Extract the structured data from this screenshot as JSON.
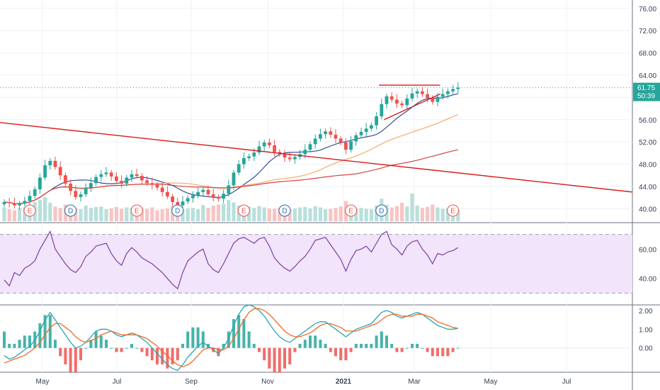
{
  "chart_data": {
    "type": "candlestick",
    "symbol_title": "",
    "x_axis_labels": [
      "May",
      "Jul",
      "Sep",
      "Nov",
      "2021",
      "Mar",
      "May",
      "Jul"
    ],
    "price_panel": {
      "y_ticks": [
        "76.00",
        "72.00",
        "68.00",
        "64.00",
        "60.00",
        "56.00",
        "52.00",
        "48.00",
        "44.00",
        "40.00"
      ],
      "ylim": [
        37.5,
        77.5
      ],
      "last_price_label": "61.75",
      "countdown_label": "50:39",
      "last_price": 61.75,
      "closes": [
        41.2,
        41.0,
        40.6,
        40.9,
        41.4,
        42.3,
        43.5,
        45.6,
        47.8,
        48.6,
        47.5,
        46.0,
        44.5,
        43.2,
        42.1,
        42.6,
        43.8,
        44.6,
        45.7,
        46.2,
        46.5,
        45.8,
        45.0,
        44.5,
        45.6,
        46.2,
        45.9,
        45.1,
        44.6,
        44.3,
        43.8,
        43.0,
        42.2,
        41.2,
        40.6,
        41.3,
        41.9,
        42.4,
        43.0,
        43.4,
        42.6,
        42.1,
        41.8,
        42.7,
        44.2,
        46.5,
        48.0,
        49.1,
        49.4,
        50.1,
        51.2,
        51.9,
        51.4,
        50.2,
        49.8,
        49.2,
        48.9,
        49.3,
        49.8,
        50.6,
        51.6,
        52.6,
        53.4,
        53.9,
        53.3,
        52.6,
        51.9,
        50.6,
        52.1,
        53.2,
        53.8,
        54.4,
        55.0,
        56.6,
        58.8,
        60.2,
        59.6,
        58.9,
        58.6,
        59.8,
        60.7,
        61.1,
        60.6,
        59.9,
        59.2,
        60.1,
        60.6,
        61.1,
        61.5,
        61.75
      ],
      "volume": [
        3.0,
        2.6,
        2.4,
        2.8,
        3.0,
        3.3,
        4.2,
        4.6,
        5.2,
        4.0,
        3.2,
        2.9,
        3.6,
        3.1,
        2.8,
        2.6,
        3.4,
        2.9,
        3.1,
        3.2,
        2.6,
        2.8,
        3.1,
        2.7,
        3.0,
        2.9,
        2.6,
        2.8,
        2.7,
        3.0,
        2.4,
        2.6,
        2.8,
        3.3,
        2.5,
        2.6,
        2.8,
        2.9,
        2.6,
        3.5,
        2.9,
        3.4,
        3.6,
        3.8,
        4.6,
        4.1,
        3.4,
        3.0,
        3.2,
        2.9,
        3.3,
        3.0,
        2.8,
        2.7,
        2.9,
        3.0,
        2.6,
        2.8,
        3.0,
        3.1,
        2.8,
        3.3,
        3.0,
        2.6,
        2.7,
        2.9,
        3.2,
        4.4,
        3.1,
        2.8,
        2.9,
        2.7,
        2.6,
        3.4,
        4.9,
        3.6,
        3.0,
        3.3,
        4.0,
        3.2,
        6.0,
        3.4,
        2.9,
        3.1,
        3.6,
        3.0,
        2.7,
        2.8,
        2.6,
        2.5
      ],
      "moving_averages": [
        {
          "color": "#1e3a8a",
          "period": 10
        },
        {
          "color": "#f5a25d",
          "period": 30
        },
        {
          "color": "#d32f2f",
          "period": 70
        }
      ],
      "trendlines": [
        {
          "color": "#d81b1b",
          "from": [
            -2,
            55.6
          ],
          "to": [
            132,
            43.0
          ]
        },
        {
          "color": "#d81b1b",
          "from": [
            73.5,
            62.2
          ],
          "to": [
            85.5,
            62.2
          ]
        },
        {
          "color": "#d81b1b",
          "from": [
            74.5,
            56.0
          ],
          "to": [
            85.5,
            60.6
          ]
        }
      ],
      "events": [
        {
          "label": "E",
          "x": 5
        },
        {
          "label": "D",
          "x": 13
        },
        {
          "label": "E",
          "x": 26
        },
        {
          "label": "D",
          "x": 34
        },
        {
          "label": "E",
          "x": 47
        },
        {
          "label": "D",
          "x": 55
        },
        {
          "label": "E",
          "x": 68
        },
        {
          "label": "D",
          "x": 74
        },
        {
          "label": "E",
          "x": 88
        }
      ],
      "colors": {
        "up": "#26a69a",
        "down": "#ef5350",
        "last_price": "#26a69a"
      }
    },
    "rsi_panel": {
      "y_ticks": [
        "60.00",
        "40.00"
      ],
      "ylim": [
        22,
        78
      ],
      "upper_band": 70,
      "lower_band": 30,
      "values": [
        39,
        35,
        44,
        42,
        47,
        49,
        52,
        60,
        66,
        72,
        60,
        55,
        50,
        46,
        44,
        48,
        55,
        58,
        62,
        63,
        64,
        57,
        52,
        49,
        57,
        61,
        58,
        54,
        52,
        50,
        47,
        44,
        40,
        36,
        33,
        44,
        52,
        55,
        58,
        60,
        50,
        46,
        44,
        50,
        57,
        64,
        67,
        68,
        66,
        64,
        67,
        68,
        62,
        54,
        50,
        47,
        45,
        48,
        52,
        55,
        60,
        66,
        67,
        68,
        63,
        58,
        53,
        45,
        53,
        59,
        60,
        62,
        58,
        64,
        70,
        72,
        63,
        60,
        56,
        62,
        65,
        66,
        60,
        56,
        50,
        57,
        56,
        58,
        59,
        61
      ],
      "color": "#7e3fa0",
      "band_fill": "#f1e4fb"
    },
    "macd_panel": {
      "y_ticks": [
        "2.00",
        "1.00",
        "0.00"
      ],
      "ylim": [
        -1.3,
        2.3
      ],
      "macd": [
        -0.4,
        -0.6,
        -0.5,
        -0.3,
        -0.1,
        0.1,
        0.4,
        0.9,
        1.5,
        1.9,
        1.5,
        1.1,
        0.7,
        0.3,
        0.0,
        0.1,
        0.3,
        0.6,
        0.9,
        1.0,
        1.0,
        0.9,
        0.7,
        0.6,
        0.7,
        0.8,
        0.7,
        0.5,
        0.3,
        0.0,
        -0.3,
        -0.6,
        -0.9,
        -1.1,
        -1.2,
        -0.9,
        -0.5,
        -0.2,
        0.1,
        0.3,
        0.1,
        -0.1,
        -0.3,
        0.0,
        0.5,
        1.2,
        1.8,
        2.2,
        2.3,
        2.2,
        2.0,
        1.7,
        1.3,
        0.9,
        0.6,
        0.4,
        0.3,
        0.5,
        0.7,
        0.9,
        1.1,
        1.3,
        1.4,
        1.4,
        1.2,
        1.0,
        0.8,
        0.6,
        0.8,
        1.0,
        1.1,
        1.2,
        1.3,
        1.6,
        1.9,
        2.0,
        1.9,
        1.7,
        1.6,
        1.7,
        1.8,
        1.9,
        1.8,
        1.6,
        1.4,
        1.2,
        1.1,
        1.0,
        1.0,
        1.05
      ],
      "signal": [
        -0.8,
        -0.7,
        -0.6,
        -0.5,
        -0.4,
        -0.2,
        0.0,
        0.3,
        0.7,
        1.1,
        1.3,
        1.3,
        1.1,
        0.9,
        0.6,
        0.4,
        0.3,
        0.4,
        0.5,
        0.7,
        0.8,
        0.9,
        0.8,
        0.7,
        0.7,
        0.7,
        0.7,
        0.6,
        0.5,
        0.3,
        0.1,
        -0.2,
        -0.4,
        -0.7,
        -0.9,
        -1.0,
        -0.9,
        -0.7,
        -0.4,
        -0.1,
        0.0,
        0.0,
        -0.1,
        -0.1,
        0.1,
        0.5,
        1.0,
        1.5,
        1.9,
        2.1,
        2.1,
        2.0,
        1.8,
        1.5,
        1.2,
        0.9,
        0.7,
        0.6,
        0.6,
        0.7,
        0.8,
        1.0,
        1.2,
        1.3,
        1.3,
        1.2,
        1.1,
        0.9,
        0.9,
        0.9,
        1.0,
        1.1,
        1.2,
        1.3,
        1.5,
        1.7,
        1.8,
        1.8,
        1.7,
        1.7,
        1.7,
        1.8,
        1.8,
        1.7,
        1.6,
        1.4,
        1.3,
        1.2,
        1.1,
        1.05
      ],
      "colors": {
        "macd": "#2aa6b0",
        "signal": "#f06a2a",
        "hist_up": "#26a69a",
        "hist_down": "#ef5350"
      }
    }
  }
}
